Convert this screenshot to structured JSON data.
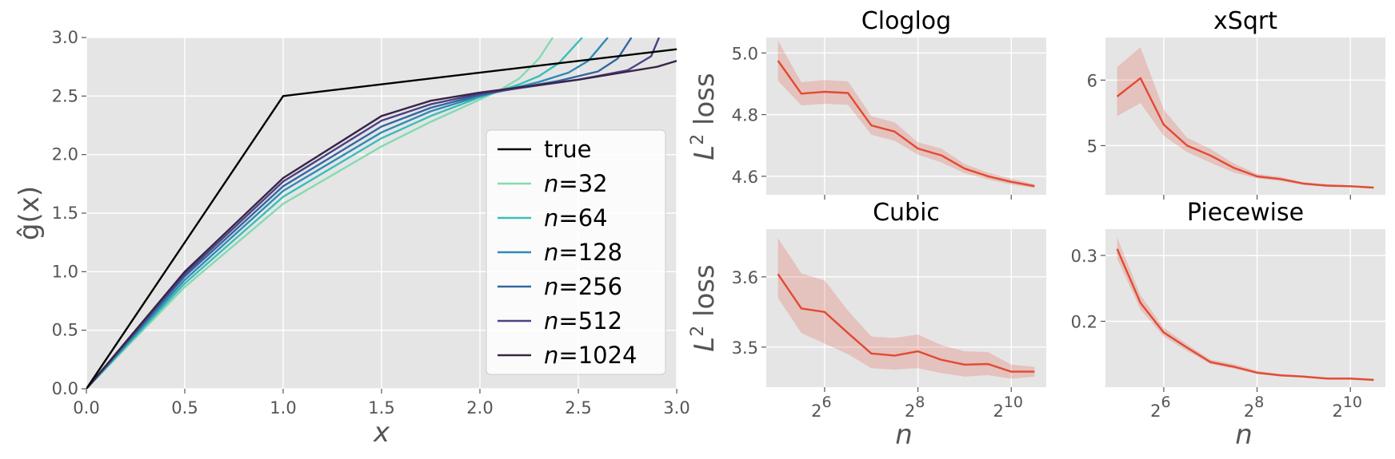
{
  "chart_data": [
    {
      "type": "line",
      "title": "",
      "xlabel": "x",
      "ylabel": "ĝ(x)",
      "xlim": [
        0.0,
        3.0
      ],
      "ylim": [
        0.0,
        3.0
      ],
      "xticks": [
        "0.0",
        "0.5",
        "1.0",
        "1.5",
        "2.0",
        "2.5",
        "3.0"
      ],
      "yticks": [
        "0.0",
        "0.5",
        "1.0",
        "1.5",
        "2.0",
        "2.5",
        "3.0"
      ],
      "legend_position": "center-right",
      "series": [
        {
          "name": "true",
          "label_prefix": "",
          "label_value": "true",
          "color": "#000000",
          "x": [
            0.0,
            1.0,
            3.0
          ],
          "y": [
            0.0,
            2.5,
            2.9
          ]
        },
        {
          "name": "n=32",
          "label_prefix": "n",
          "label_value": "=32",
          "color": "#84dab0",
          "x": [
            0.0,
            0.5,
            1.0,
            1.5,
            1.75,
            2.0,
            2.1,
            2.2,
            2.3,
            2.37
          ],
          "y": [
            0.0,
            0.87,
            1.58,
            2.07,
            2.28,
            2.47,
            2.55,
            2.65,
            2.82,
            3.0
          ]
        },
        {
          "name": "n=64",
          "label_prefix": "n",
          "label_value": "=64",
          "color": "#3bbdb8",
          "x": [
            0.0,
            0.5,
            1.0,
            1.5,
            1.75,
            2.0,
            2.2,
            2.3,
            2.4,
            2.52
          ],
          "y": [
            0.0,
            0.9,
            1.64,
            2.14,
            2.33,
            2.49,
            2.6,
            2.67,
            2.78,
            3.0
          ]
        },
        {
          "name": "n=128",
          "label_prefix": "n",
          "label_value": "=128",
          "color": "#2f8bb5",
          "x": [
            0.0,
            0.5,
            1.0,
            1.5,
            1.75,
            2.0,
            2.3,
            2.45,
            2.55,
            2.65
          ],
          "y": [
            0.0,
            0.93,
            1.69,
            2.19,
            2.37,
            2.5,
            2.62,
            2.7,
            2.8,
            3.0
          ]
        },
        {
          "name": "n=256",
          "label_prefix": "n",
          "label_value": "=256",
          "color": "#3366a0",
          "x": [
            0.0,
            0.5,
            1.0,
            1.5,
            1.75,
            2.0,
            2.4,
            2.6,
            2.7,
            2.77
          ],
          "y": [
            0.0,
            0.96,
            1.73,
            2.24,
            2.4,
            2.51,
            2.63,
            2.71,
            2.82,
            3.0
          ]
        },
        {
          "name": "n=512",
          "label_prefix": "n",
          "label_value": "=512",
          "color": "#4a4187",
          "x": [
            0.0,
            0.5,
            1.0,
            1.5,
            1.75,
            2.0,
            2.5,
            2.75,
            2.87,
            2.91
          ],
          "y": [
            0.0,
            0.98,
            1.77,
            2.29,
            2.43,
            2.52,
            2.64,
            2.72,
            2.84,
            3.0
          ]
        },
        {
          "name": "n=1024",
          "label_prefix": "n",
          "label_value": "=1024",
          "color": "#3b2446",
          "x": [
            0.0,
            0.5,
            1.0,
            1.5,
            1.75,
            2.0,
            2.5,
            2.9,
            3.0
          ],
          "y": [
            0.0,
            1.0,
            1.8,
            2.33,
            2.46,
            2.53,
            2.64,
            2.75,
            2.8
          ]
        }
      ]
    },
    {
      "type": "line",
      "title": "Cloglog",
      "ylabel_base": "L",
      "ylabel_exp": "2",
      "ylabel_rest": " loss",
      "xscale": "log2",
      "xlim": [
        4.75,
        10.75
      ],
      "ylim": [
        4.54,
        5.05
      ],
      "yticks": [
        4.6,
        4.8,
        5.0
      ],
      "ytick_labels": [
        "4.6",
        "4.8",
        "5.0"
      ],
      "xticks": [
        6,
        8,
        10
      ],
      "xtick_labels_shown": false,
      "series": [
        {
          "name": "mean",
          "color": "#e24a33",
          "log2n": [
            5.0,
            5.5,
            6.0,
            6.5,
            7.0,
            7.5,
            8.0,
            8.5,
            9.0,
            9.5,
            10.0,
            10.5
          ],
          "y": [
            4.975,
            4.868,
            4.874,
            4.87,
            4.765,
            4.745,
            4.69,
            4.668,
            4.625,
            4.6,
            4.582,
            4.568
          ],
          "lower": [
            4.91,
            4.83,
            4.835,
            4.832,
            4.735,
            4.715,
            4.67,
            4.645,
            4.61,
            4.59,
            4.573,
            4.562
          ],
          "upper": [
            5.04,
            4.905,
            4.912,
            4.908,
            4.795,
            4.775,
            4.71,
            4.69,
            4.64,
            4.612,
            4.592,
            4.574
          ]
        }
      ]
    },
    {
      "type": "line",
      "title": "xSqrt",
      "xscale": "log2",
      "xlim": [
        4.75,
        10.75
      ],
      "ylim": [
        4.25,
        6.65
      ],
      "yticks": [
        5,
        6
      ],
      "ytick_labels": [
        "5",
        "6"
      ],
      "xticks": [
        6,
        8,
        10
      ],
      "xtick_labels_shown": false,
      "series": [
        {
          "name": "mean",
          "color": "#e24a33",
          "log2n": [
            5.0,
            5.5,
            6.0,
            6.5,
            7.0,
            7.5,
            8.0,
            8.5,
            9.0,
            9.5,
            10.0,
            10.5
          ],
          "y": [
            5.75,
            6.03,
            5.32,
            5.0,
            4.85,
            4.66,
            4.53,
            4.49,
            4.42,
            4.39,
            4.38,
            4.36
          ],
          "lower": [
            5.45,
            5.65,
            5.15,
            4.9,
            4.74,
            4.59,
            4.5,
            4.46,
            4.4,
            4.37,
            4.365,
            4.35
          ],
          "upper": [
            6.2,
            6.5,
            5.55,
            5.12,
            4.95,
            4.73,
            4.57,
            4.52,
            4.44,
            4.41,
            4.395,
            4.37
          ]
        }
      ]
    },
    {
      "type": "line",
      "title": "Cubic",
      "ylabel_base": "L",
      "ylabel_exp": "2",
      "ylabel_rest": " loss",
      "xscale": "log2",
      "xlim": [
        4.75,
        10.75
      ],
      "ylim": [
        3.443,
        3.668
      ],
      "yticks": [
        3.5,
        3.6
      ],
      "ytick_labels": [
        "3.5",
        "3.6"
      ],
      "xticks": [
        6,
        8,
        10
      ],
      "xtick_labels_shown": true,
      "xlabel": "n",
      "series": [
        {
          "name": "mean",
          "color": "#e24a33",
          "log2n": [
            5.0,
            5.5,
            6.0,
            6.5,
            7.0,
            7.5,
            8.0,
            8.5,
            9.0,
            9.5,
            10.0,
            10.5
          ],
          "y": [
            3.604,
            3.555,
            3.55,
            3.52,
            3.491,
            3.488,
            3.494,
            3.482,
            3.475,
            3.476,
            3.465,
            3.465
          ],
          "lower": [
            3.57,
            3.52,
            3.505,
            3.49,
            3.47,
            3.468,
            3.47,
            3.463,
            3.458,
            3.46,
            3.455,
            3.458
          ],
          "upper": [
            3.655,
            3.605,
            3.595,
            3.552,
            3.515,
            3.513,
            3.518,
            3.503,
            3.494,
            3.493,
            3.475,
            3.472
          ]
        }
      ]
    },
    {
      "type": "line",
      "title": "Piecewise",
      "xscale": "log2",
      "xlim": [
        4.75,
        10.75
      ],
      "ylim": [
        0.1,
        0.34
      ],
      "yticks": [
        0.2,
        0.3
      ],
      "ytick_labels": [
        "0.2",
        "0.3"
      ],
      "xticks": [
        6,
        8,
        10
      ],
      "xtick_labels_shown": true,
      "xlabel": "n",
      "series": [
        {
          "name": "mean",
          "color": "#e24a33",
          "log2n": [
            5.0,
            5.5,
            6.0,
            6.5,
            7.0,
            7.5,
            8.0,
            8.5,
            9.0,
            9.5,
            10.0,
            10.5
          ],
          "y": [
            0.31,
            0.228,
            0.183,
            0.16,
            0.138,
            0.131,
            0.122,
            0.118,
            0.116,
            0.113,
            0.113,
            0.111
          ],
          "lower": [
            0.295,
            0.218,
            0.177,
            0.155,
            0.135,
            0.128,
            0.12,
            0.116,
            0.115,
            0.112,
            0.112,
            0.11
          ],
          "upper": [
            0.327,
            0.24,
            0.19,
            0.165,
            0.142,
            0.135,
            0.125,
            0.12,
            0.118,
            0.115,
            0.115,
            0.113
          ]
        }
      ]
    }
  ]
}
